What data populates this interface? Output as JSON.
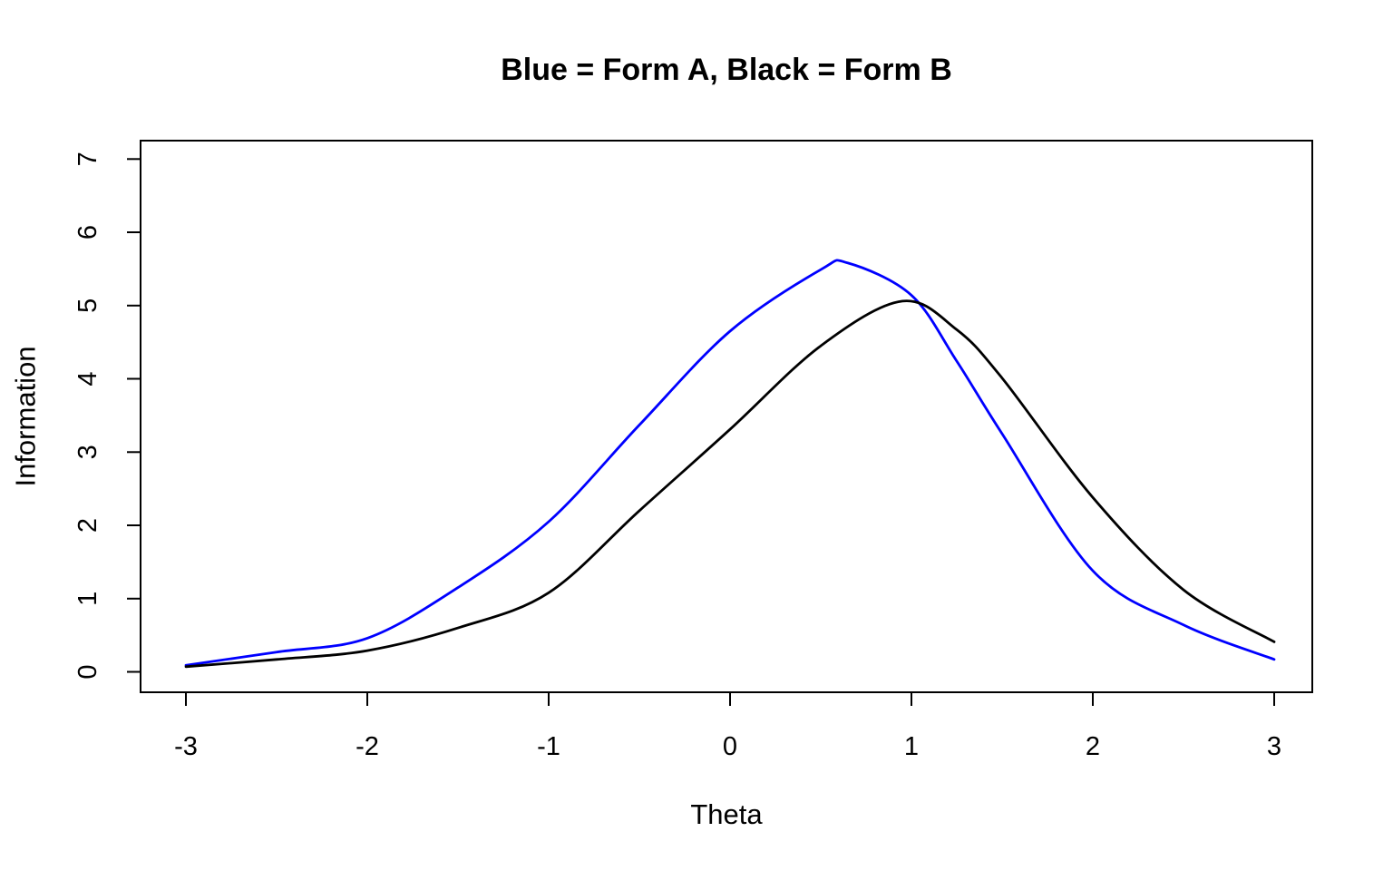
{
  "chart_data": {
    "type": "line",
    "title": "Blue = Form A, Black = Form B",
    "xlabel": "Theta",
    "ylabel": "Information",
    "xlim": [
      -3.25,
      3.21
    ],
    "ylim": [
      -0.28,
      7.25
    ],
    "x_ticks": [
      -3,
      -2,
      -1,
      0,
      1,
      2,
      3
    ],
    "y_ticks": [
      0,
      1,
      2,
      3,
      4,
      5,
      6,
      7
    ],
    "grid": false,
    "legend_position": "none (encoded in title)",
    "background": "#ffffff",
    "axis_color": "#000000",
    "series": [
      {
        "name": "Form A",
        "color": "#0000ff",
        "x": [
          -3,
          -2.5,
          -2,
          -1.5,
          -1,
          -0.5,
          0,
          0.5,
          0.65,
          1,
          1.25,
          1.5,
          2,
          2.5,
          3
        ],
        "y": [
          0.09,
          0.27,
          0.46,
          1.15,
          2.05,
          3.37,
          4.65,
          5.49,
          5.58,
          5.14,
          4.24,
          3.25,
          1.38,
          0.64,
          0.17
        ],
        "peak": {
          "theta": 0.65,
          "information": 5.58
        }
      },
      {
        "name": "Form B",
        "color": "#000000",
        "x": [
          -3,
          -2.5,
          -2,
          -1.5,
          -1,
          -0.5,
          0,
          0.5,
          0.95,
          1.25,
          1.5,
          2,
          2.5,
          3
        ],
        "y": [
          0.07,
          0.17,
          0.29,
          0.6,
          1.08,
          2.2,
          3.31,
          4.45,
          5.06,
          4.67,
          4.01,
          2.38,
          1.12,
          0.41
        ],
        "peak": {
          "theta": 0.95,
          "information": 5.06
        }
      }
    ],
    "crossing_point": {
      "theta": 1.05,
      "information": 4.98
    }
  }
}
